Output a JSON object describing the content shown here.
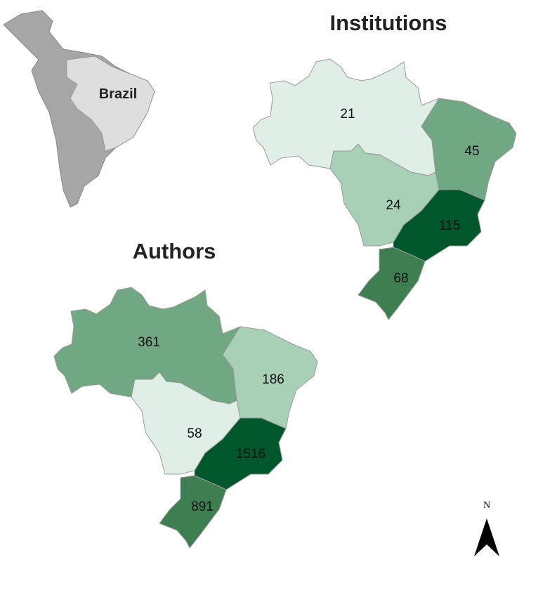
{
  "inset": {
    "label": "Brazil"
  },
  "north_arrow": {
    "label": "N"
  },
  "maps": [
    {
      "title": "Institutions",
      "regions": [
        {
          "value": 21,
          "color": "#e0efe6"
        },
        {
          "value": 45,
          "color": "#6fa883"
        },
        {
          "value": 24,
          "color": "#a8d0b6"
        },
        {
          "value": 115,
          "color": "#00572c"
        },
        {
          "value": 68,
          "color": "#3d7f50"
        }
      ]
    },
    {
      "title": "Authors",
      "regions": [
        {
          "value": 361,
          "color": "#6fa883"
        },
        {
          "value": 186,
          "color": "#a8d0b6"
        },
        {
          "value": 58,
          "color": "#e0efe6"
        },
        {
          "value": 1516,
          "color": "#00572c"
        },
        {
          "value": 891,
          "color": "#3d7f50"
        }
      ]
    }
  ]
}
